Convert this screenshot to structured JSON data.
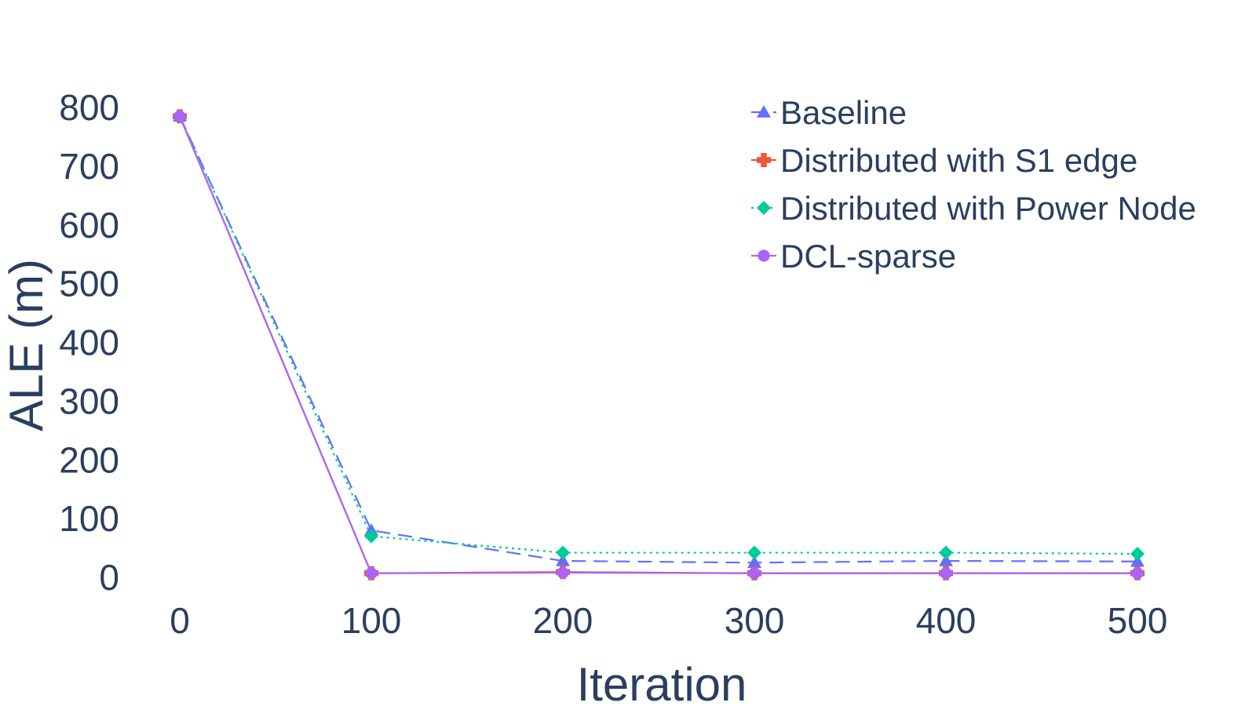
{
  "chart_data": {
    "type": "line",
    "title": "",
    "xlabel": "Iteration",
    "ylabel": "ALE (m)",
    "x": [
      0,
      100,
      200,
      300,
      400,
      500
    ],
    "xlim": [
      0,
      500
    ],
    "ylim": [
      0,
      800
    ],
    "xticks": [
      "0",
      "100",
      "200",
      "300",
      "400",
      "500"
    ],
    "yticks": [
      "0",
      "100",
      "200",
      "300",
      "400",
      "500",
      "600",
      "700",
      "800"
    ],
    "grid": false,
    "legend_position": "top-right",
    "series": [
      {
        "name": "Baseline",
        "color": "#636efa",
        "dash": "dashed",
        "marker": "triangle-up",
        "values": [
          785,
          80,
          28,
          25,
          28,
          27
        ]
      },
      {
        "name": "Distributed with S1 edge",
        "color": "#ef553b",
        "dash": "solid",
        "marker": "cross",
        "values": [
          785,
          7,
          9,
          7,
          7,
          7
        ]
      },
      {
        "name": "Distributed with Power Node",
        "color": "#00cc96",
        "dash": "dotted",
        "marker": "diamond",
        "values": [
          785,
          70,
          42,
          42,
          42,
          40
        ]
      },
      {
        "name": "DCL-sparse",
        "color": "#ab63fa",
        "dash": "solid",
        "marker": "circle",
        "values": [
          785,
          7,
          8,
          7,
          7,
          7
        ]
      }
    ]
  }
}
